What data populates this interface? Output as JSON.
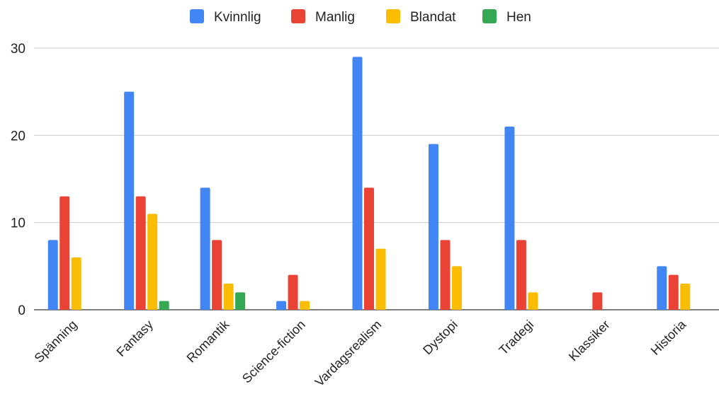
{
  "chart_data": {
    "type": "bar",
    "title": "",
    "xlabel": "",
    "ylabel": "",
    "ylim": [
      0,
      30
    ],
    "yticks": [
      0,
      10,
      20,
      30
    ],
    "grid": true,
    "legend_position": "top",
    "categories": [
      "Spänning",
      "Fantasy",
      "Romantik",
      "Science-fiction",
      "Vardagsrealism",
      "Dystopi",
      "Tradegi",
      "Klassiker",
      "Historia"
    ],
    "series": [
      {
        "name": "Kvinnlig",
        "color": "#4285F4",
        "values": [
          8,
          25,
          14,
          1,
          29,
          19,
          21,
          0,
          5
        ]
      },
      {
        "name": "Manlig",
        "color": "#EA4335",
        "values": [
          13,
          13,
          8,
          4,
          14,
          8,
          8,
          2,
          4
        ]
      },
      {
        "name": "Blandat",
        "color": "#FBBC04",
        "values": [
          6,
          11,
          3,
          1,
          7,
          5,
          2,
          0,
          3
        ]
      },
      {
        "name": "Hen",
        "color": "#34A853",
        "values": [
          0,
          1,
          2,
          0,
          0,
          0,
          0,
          0,
          0
        ]
      }
    ]
  }
}
